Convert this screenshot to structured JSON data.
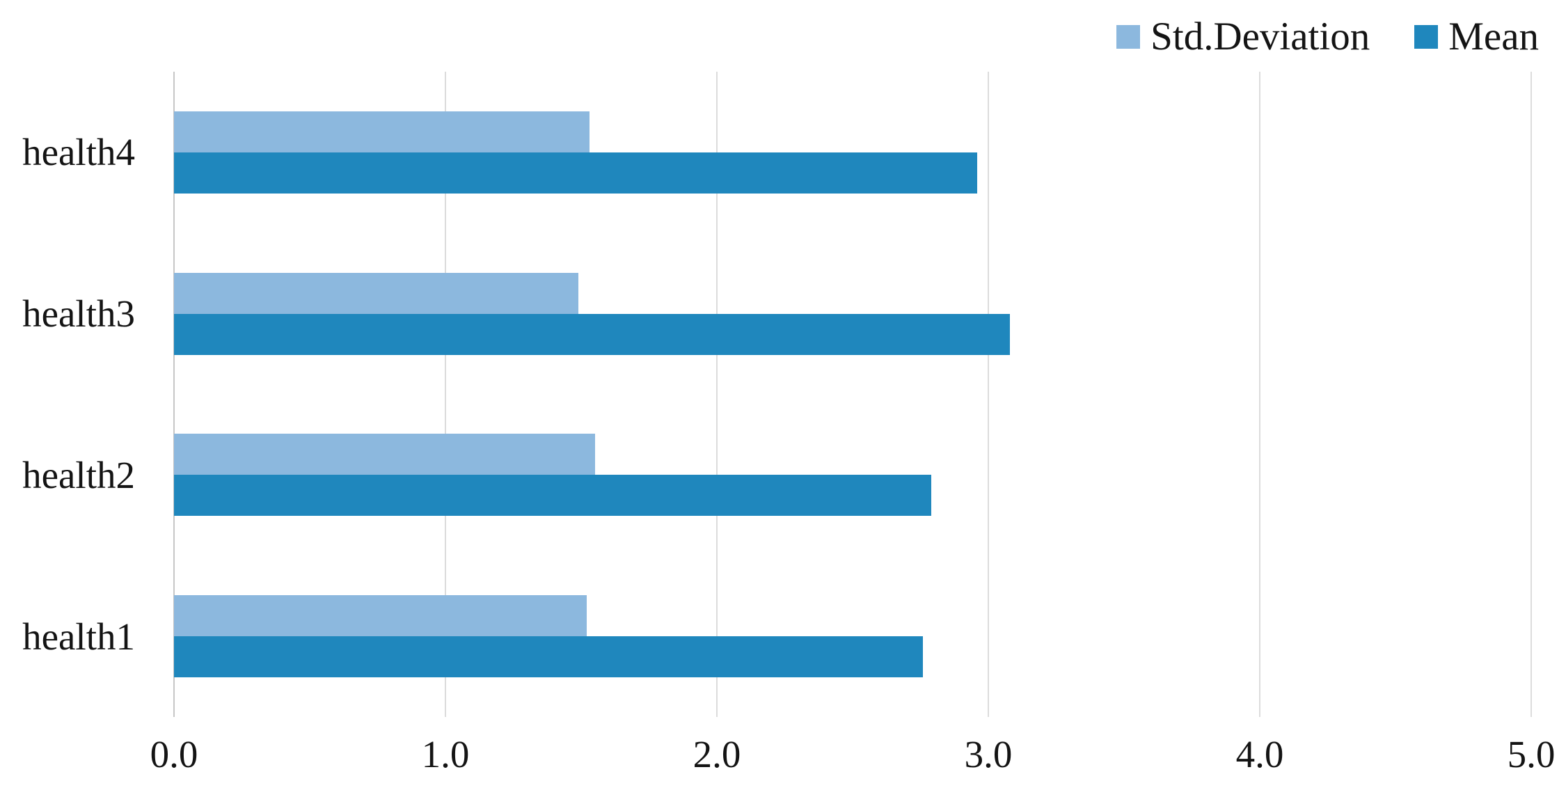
{
  "chart_data": {
    "type": "bar",
    "orientation": "horizontal",
    "title": "",
    "categories": [
      "health4",
      "health3",
      "health2",
      "health1"
    ],
    "series": [
      {
        "name": "Std.Deviation",
        "color": "#8cb8de",
        "values": [
          1.53,
          1.49,
          1.55,
          1.52
        ]
      },
      {
        "name": "Mean",
        "color": "#1f87bd",
        "values": [
          2.96,
          3.08,
          2.79,
          2.76
        ]
      }
    ],
    "xlim": [
      0,
      5
    ],
    "x_ticks": [
      "0.0",
      "1.0",
      "2.0",
      "3.0",
      "4.0",
      "5.0"
    ],
    "grid": "vertical-gridlines-on",
    "legend_position": "top-right",
    "bar_order_in_group": "Std.Deviation above Mean",
    "colors": {
      "background": "#ffffff",
      "gridline": "#dcdcdc",
      "zero_axis_line": "#c6c6c6",
      "text": "#141414"
    }
  }
}
